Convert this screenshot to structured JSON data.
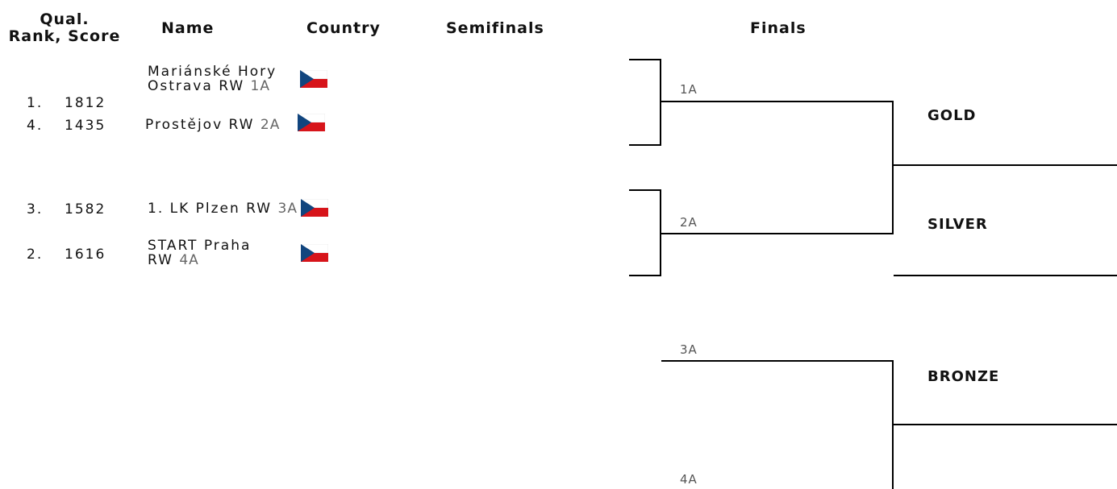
{
  "headers": {
    "qual_line1": "Qual.",
    "qual_line2": "Rank, Score",
    "name": "Name",
    "country": "Country",
    "semifinals": "Semifinals",
    "finals": "Finals"
  },
  "teams": [
    {
      "rank": "1.",
      "score": "1812",
      "name_line1": "Mariánské Hory",
      "name_line2": "Ostrava RW",
      "seed": "1A",
      "country": "CZE"
    },
    {
      "rank": "4.",
      "score": "1435",
      "name_line1": "Prostějov RW",
      "name_line2": "",
      "seed": "2A",
      "country": "CZE"
    },
    {
      "rank": "3.",
      "score": "1582",
      "name_line1": "1. LK Plzen RW",
      "name_line2": "",
      "seed": "3A",
      "country": "CZE"
    },
    {
      "rank": "2.",
      "score": "1616",
      "name_line1": "START Praha",
      "name_line2": "RW",
      "seed": "4A",
      "country": "CZE"
    }
  ],
  "bracket": {
    "slots": [
      "1A",
      "2A",
      "3A",
      "4A"
    ],
    "medals": {
      "gold": "GOLD",
      "silver": "SILVER",
      "bronze": "BRONZE"
    }
  },
  "colors": {
    "flag_white": "#ffffff",
    "flag_red": "#d7141a",
    "flag_blue": "#11457e"
  }
}
